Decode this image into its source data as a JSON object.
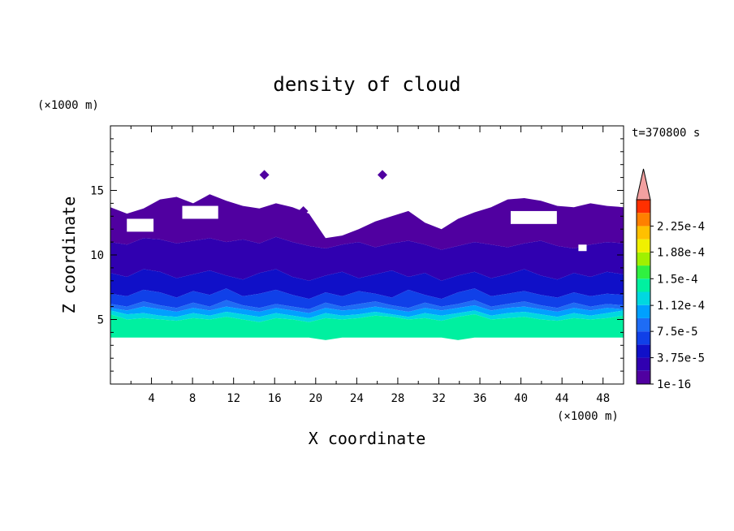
{
  "chart_data": {
    "type": "heatmap",
    "title": "density of cloud",
    "xlabel": "X coordinate",
    "ylabel": "Z coordinate",
    "x_unit": "(×1000 m)",
    "y_unit": "(×1000 m)",
    "time_label": "t=370800 s",
    "xlim": [
      0,
      50
    ],
    "ylim": [
      0,
      20
    ],
    "x_ticks": [
      "4",
      "8",
      "12",
      "16",
      "20",
      "24",
      "28",
      "32",
      "36",
      "40",
      "44",
      "48"
    ],
    "x_tick_values": [
      4,
      8,
      12,
      16,
      20,
      24,
      28,
      32,
      36,
      40,
      44,
      48
    ],
    "y_ticks": [
      "5",
      "10",
      "15"
    ],
    "y_tick_values": [
      5,
      10,
      15
    ],
    "colorbar": {
      "labels": [
        "1e-16",
        "3.75e-5",
        "7.5e-5",
        "1.12e-4",
        "1.5e-4",
        "1.88e-4",
        "2.25e-4"
      ],
      "label_values": [
        0,
        3.75e-05,
        7.5e-05,
        0.000112,
        0.00015,
        0.000188,
        0.000225
      ],
      "levels": 14,
      "colors": [
        "#5000a0",
        "#3000b0",
        "#1010c8",
        "#1040e8",
        "#1e6cf5",
        "#00a0ff",
        "#00d8e0",
        "#00f0a0",
        "#30f040",
        "#a0f000",
        "#f0f000",
        "#ffc000",
        "#ff8000",
        "#ff3000"
      ],
      "over_color": "#f2a0a0"
    },
    "bands": [
      {
        "name": "top",
        "values": [
          13.7,
          13.2,
          13.6,
          14.3,
          14.5,
          14.0,
          14.7,
          14.2,
          13.8,
          13.6,
          14.0,
          13.7,
          13.2,
          11.3,
          11.5,
          12.0,
          12.6,
          13.0,
          13.4,
          12.5,
          12.0,
          12.8,
          13.3,
          13.7,
          14.3,
          14.4,
          14.2,
          13.8,
          13.7,
          14.0,
          13.8,
          13.7
        ]
      },
      {
        "name": "level1",
        "values": [
          11.0,
          10.8,
          11.3,
          11.2,
          10.9,
          11.1,
          11.3,
          11.0,
          11.2,
          10.9,
          11.4,
          11.0,
          10.7,
          10.5,
          10.8,
          11.0,
          10.6,
          10.9,
          11.1,
          10.8,
          10.4,
          10.7,
          11.0,
          10.8,
          10.6,
          10.9,
          11.1,
          10.7,
          10.5,
          10.8,
          11.0,
          10.9
        ]
      },
      {
        "name": "level2",
        "values": [
          8.6,
          8.3,
          8.9,
          8.7,
          8.2,
          8.5,
          8.8,
          8.4,
          8.1,
          8.6,
          8.9,
          8.3,
          8.0,
          8.4,
          8.7,
          8.2,
          8.5,
          8.8,
          8.3,
          8.6,
          8.0,
          8.4,
          8.7,
          8.2,
          8.5,
          8.9,
          8.4,
          8.1,
          8.6,
          8.3,
          8.7,
          8.5
        ]
      },
      {
        "name": "level3",
        "values": [
          7.0,
          6.8,
          7.3,
          7.1,
          6.7,
          7.2,
          6.9,
          7.4,
          6.8,
          7.0,
          7.3,
          6.9,
          6.6,
          7.1,
          6.8,
          7.2,
          7.0,
          6.7,
          7.3,
          6.9,
          6.6,
          7.1,
          7.4,
          6.8,
          7.0,
          7.2,
          6.9,
          6.7,
          7.1,
          6.8,
          7.0,
          6.9
        ]
      },
      {
        "name": "level4",
        "values": [
          6.2,
          6.0,
          6.4,
          6.1,
          5.9,
          6.3,
          6.0,
          6.5,
          6.1,
          5.9,
          6.2,
          6.0,
          5.8,
          6.3,
          6.0,
          6.2,
          6.4,
          6.1,
          5.9,
          6.3,
          6.0,
          6.2,
          6.5,
          6.0,
          6.2,
          6.4,
          6.1,
          5.9,
          6.3,
          6.0,
          6.2,
          6.1
        ]
      },
      {
        "name": "level5",
        "values": [
          5.9,
          5.7,
          6.0,
          5.8,
          5.6,
          5.9,
          5.7,
          6.0,
          5.8,
          5.6,
          5.9,
          5.7,
          5.5,
          5.9,
          5.7,
          5.8,
          6.0,
          5.8,
          5.6,
          5.9,
          5.7,
          5.9,
          6.1,
          5.7,
          5.9,
          6.0,
          5.8,
          5.6,
          5.9,
          5.7,
          5.9,
          5.8
        ]
      },
      {
        "name": "level6",
        "values": [
          5.7,
          5.4,
          5.5,
          5.3,
          5.2,
          5.5,
          5.3,
          5.6,
          5.4,
          5.2,
          5.5,
          5.3,
          5.1,
          5.5,
          5.3,
          5.4,
          5.6,
          5.4,
          5.2,
          5.5,
          5.3,
          5.5,
          5.7,
          5.3,
          5.5,
          5.6,
          5.4,
          5.2,
          5.5,
          5.3,
          5.5,
          5.7
        ]
      },
      {
        "name": "level7",
        "values": [
          5.4,
          5.0,
          5.1,
          5.0,
          4.9,
          5.1,
          5.0,
          5.2,
          5.0,
          4.8,
          5.1,
          5.0,
          4.8,
          5.1,
          5.0,
          5.1,
          5.3,
          5.2,
          5.0,
          5.1,
          4.9,
          5.2,
          5.4,
          5.0,
          5.1,
          5.2,
          5.0,
          4.9,
          5.1,
          5.0,
          5.1,
          5.3
        ]
      },
      {
        "name": "bottom",
        "values": [
          3.6,
          3.6,
          3.6,
          3.6,
          3.6,
          3.6,
          3.6,
          3.6,
          3.6,
          3.6,
          3.6,
          3.6,
          3.6,
          3.4,
          3.6,
          3.6,
          3.6,
          3.6,
          3.6,
          3.6,
          3.6,
          3.4,
          3.6,
          3.6,
          3.6,
          3.6,
          3.6,
          3.6,
          3.6,
          3.6,
          3.6,
          3.6
        ]
      }
    ],
    "band_color_levels": [
      0,
      1,
      2,
      3,
      4,
      5,
      6,
      7
    ],
    "cloud_free_holes": [
      {
        "x": [
          1.6,
          4.2
        ],
        "z": [
          11.8,
          12.8
        ]
      },
      {
        "x": [
          7.0,
          10.5
        ],
        "z": [
          12.8,
          13.8
        ]
      },
      {
        "x": [
          39.0,
          43.5
        ],
        "z": [
          12.4,
          13.4
        ]
      },
      {
        "x": [
          45.6,
          46.4
        ],
        "z": [
          10.3,
          10.8
        ]
      }
    ],
    "isolated_cells": [
      {
        "x": 15.0,
        "z": 16.2
      },
      {
        "x": 18.8,
        "z": 13.4
      },
      {
        "x": 26.5,
        "z": 16.2
      }
    ]
  }
}
